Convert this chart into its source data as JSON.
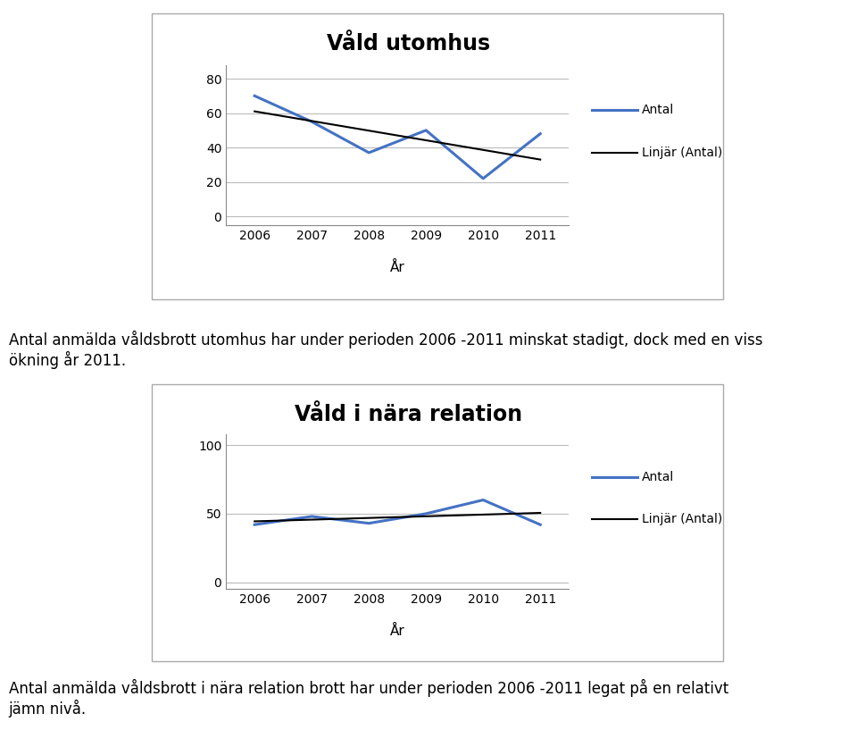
{
  "chart1": {
    "title": "Våld utomhus",
    "years": [
      2006,
      2007,
      2008,
      2009,
      2010,
      2011
    ],
    "antal": [
      70,
      55,
      37,
      50,
      22,
      48
    ],
    "line_color": "#4472C4",
    "trend_color": "#000000",
    "xlabel": "År",
    "yticks": [
      0,
      20,
      40,
      60,
      80
    ],
    "ylim": [
      -5,
      88
    ]
  },
  "chart2": {
    "title": "Våld i nära relation",
    "years": [
      2006,
      2007,
      2008,
      2009,
      2010,
      2011
    ],
    "antal": [
      42,
      48,
      43,
      50,
      60,
      42
    ],
    "line_color": "#4472C4",
    "trend_color": "#000000",
    "xlabel": "År",
    "yticks": [
      0,
      50,
      100
    ],
    "ylim": [
      -5,
      108
    ]
  },
  "text1": "Antal anmälda våldsbrott utomhus har under perioden 2006 -2011 minskat stadigt, dock med en viss\nökning år 2011.",
  "text2": "Antal anmälda våldsbrott i nära relation brott har under perioden 2006 -2011 legat på en relativt\njämn nivå.",
  "legend_antal": "Antal",
  "legend_linjar": "Linjär (Antal)",
  "bg_color": "#ffffff",
  "chart_bg": "#ffffff",
  "title_fontsize": 17,
  "label_fontsize": 11,
  "tick_fontsize": 10,
  "text_fontsize": 12,
  "border_color": "#aaaaaa"
}
